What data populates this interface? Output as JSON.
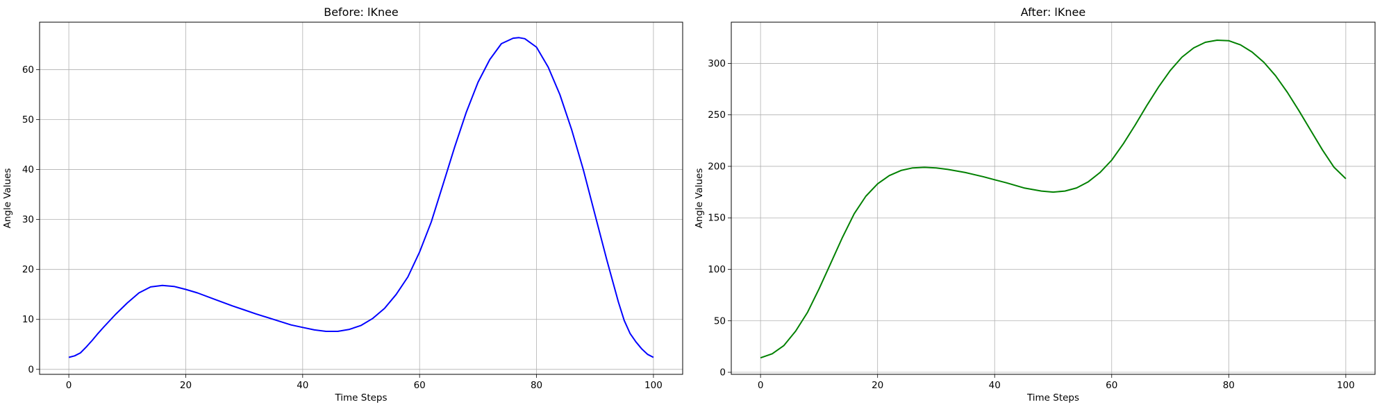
{
  "chart_data": [
    {
      "type": "line",
      "title": "Before: lKnee",
      "xlabel": "Time Steps",
      "ylabel": "Angle Values",
      "xlim": [
        -5,
        105
      ],
      "ylim": [
        -1,
        69.5
      ],
      "xticks": [
        0,
        20,
        40,
        60,
        80,
        100
      ],
      "yticks": [
        0,
        10,
        20,
        30,
        40,
        50,
        60
      ],
      "grid": true,
      "series": [
        {
          "color": "#0000ff",
          "x": [
            0,
            1,
            2,
            3,
            4,
            5,
            6,
            8,
            10,
            12,
            14,
            16,
            18,
            20,
            22,
            25,
            28,
            30,
            32,
            35,
            38,
            40,
            42,
            44,
            46,
            48,
            50,
            52,
            54,
            56,
            58,
            60,
            62,
            64,
            66,
            68,
            70,
            72,
            74,
            76,
            77,
            78,
            80,
            82,
            84,
            86,
            88,
            90,
            92,
            94,
            95,
            96,
            97,
            98,
            99,
            100
          ],
          "y": [
            2.4,
            2.7,
            3.3,
            4.5,
            5.8,
            7.2,
            8.5,
            11.0,
            13.3,
            15.3,
            16.5,
            16.8,
            16.6,
            16.0,
            15.3,
            14.0,
            12.7,
            11.9,
            11.1,
            10.0,
            8.9,
            8.4,
            7.9,
            7.6,
            7.6,
            8.0,
            8.8,
            10.2,
            12.2,
            15.0,
            18.5,
            23.5,
            29.5,
            37.0,
            44.5,
            51.5,
            57.5,
            62.0,
            65.2,
            66.3,
            66.4,
            66.2,
            64.5,
            60.5,
            55.0,
            48.0,
            40.0,
            31.0,
            22.0,
            13.5,
            9.8,
            7.2,
            5.5,
            4.1,
            3.0,
            2.4
          ]
        }
      ]
    },
    {
      "type": "line",
      "title": "After: lKnee",
      "xlabel": "Time Steps",
      "ylabel": "Angle Values",
      "xlim": [
        -5,
        105
      ],
      "ylim": [
        -2,
        340
      ],
      "xticks": [
        0,
        20,
        40,
        60,
        80,
        100
      ],
      "yticks": [
        0,
        50,
        100,
        150,
        200,
        250,
        300
      ],
      "grid": true,
      "series": [
        {
          "color": "#008000",
          "x": [
            0,
            2,
            4,
            6,
            8,
            10,
            12,
            14,
            16,
            18,
            20,
            22,
            24,
            26,
            28,
            30,
            32,
            35,
            38,
            40,
            42,
            45,
            48,
            50,
            52,
            54,
            56,
            58,
            60,
            62,
            64,
            66,
            68,
            70,
            72,
            74,
            76,
            78,
            80,
            82,
            84,
            86,
            88,
            90,
            92,
            94,
            96,
            98,
            100
          ],
          "y": [
            14,
            18,
            26,
            40,
            58,
            81,
            106,
            131,
            154,
            171,
            183,
            191,
            196,
            198.5,
            199,
            198.5,
            197,
            194,
            190,
            187,
            184,
            179,
            176,
            175,
            176,
            179,
            185,
            194,
            206,
            222,
            240,
            259,
            277,
            293,
            306,
            315,
            320.5,
            322.5,
            322,
            318,
            311,
            301,
            288,
            272,
            254,
            235,
            216,
            199,
            188
          ]
        }
      ]
    }
  ]
}
